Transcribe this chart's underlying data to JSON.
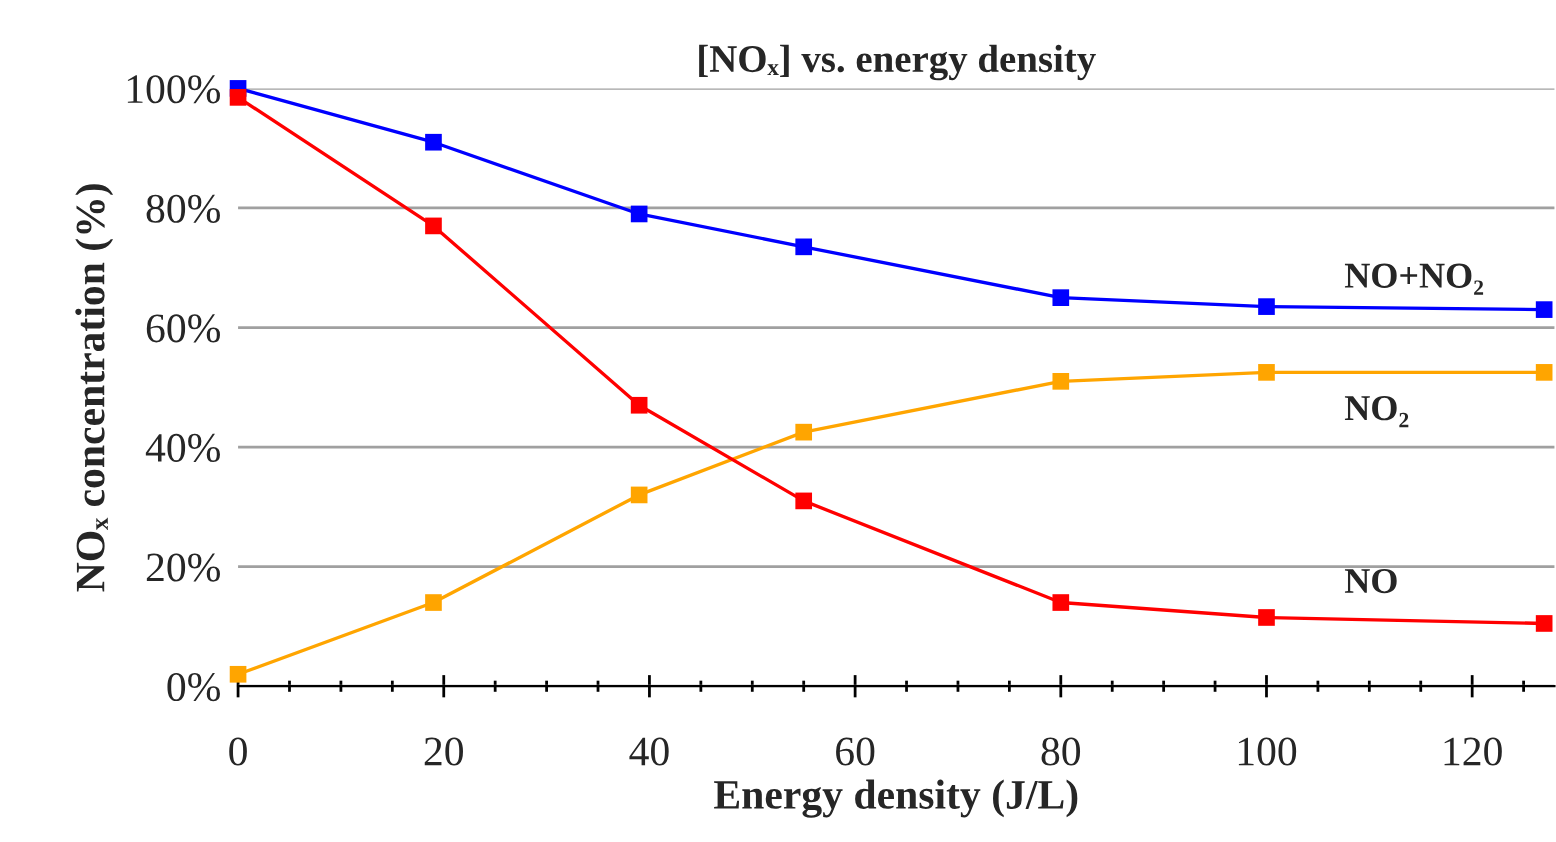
{
  "chart_data": {
    "type": "line",
    "title": "[NOₓ] vs. energy density",
    "xlabel": "Energy density (J/L)",
    "ylabel": "NOₓ concentration (%)",
    "x": [
      0,
      19,
      39,
      55,
      80,
      100,
      127
    ],
    "series": [
      {
        "name": "NO+NO₂",
        "color": "#0000ff",
        "values": [
          100,
          91,
          79,
          73.5,
          65,
          63.5,
          63
        ]
      },
      {
        "name": "NO₂",
        "color": "#ffa500",
        "values": [
          2,
          14,
          32,
          42.5,
          51,
          52.5,
          52.5
        ]
      },
      {
        "name": "NO",
        "color": "#ff0000",
        "values": [
          98.5,
          77,
          47,
          31,
          14,
          11.5,
          10.5
        ]
      }
    ],
    "xlim": [
      0,
      128
    ],
    "xticks": [
      0,
      {
        "value": 5,
        "label": null
      },
      {
        "value": 10,
        "label": null
      },
      {
        "value": 15,
        "label": null
      },
      20,
      {
        "value": 25,
        "label": null
      },
      {
        "value": 30,
        "label": null
      },
      {
        "value": 35,
        "label": null
      },
      40,
      {
        "value": 45,
        "label": null
      },
      {
        "value": 50,
        "label": null
      },
      {
        "value": 55,
        "label": null
      },
      60,
      {
        "value": 65,
        "label": null
      },
      {
        "value": 70,
        "label": null
      },
      {
        "value": 75,
        "label": null
      },
      80,
      {
        "value": 85,
        "label": null
      },
      {
        "value": 90,
        "label": null
      },
      {
        "value": 95,
        "label": null
      },
      100,
      {
        "value": 105,
        "label": null
      },
      {
        "value": 110,
        "label": null
      },
      {
        "value": 115,
        "label": null
      },
      120,
      {
        "value": 125,
        "label": null
      }
    ],
    "ylim": [
      0,
      100
    ],
    "yticks": [
      {
        "value": 0,
        "label": "0%"
      },
      {
        "value": 20,
        "label": "20%"
      },
      {
        "value": 40,
        "label": "40%"
      },
      {
        "value": 60,
        "label": "60%"
      },
      {
        "value": 80,
        "label": "80%"
      },
      {
        "value": 100,
        "label": "100%"
      }
    ],
    "grid": "y",
    "legend": false,
    "marker": "square",
    "line_style": "solid"
  }
}
